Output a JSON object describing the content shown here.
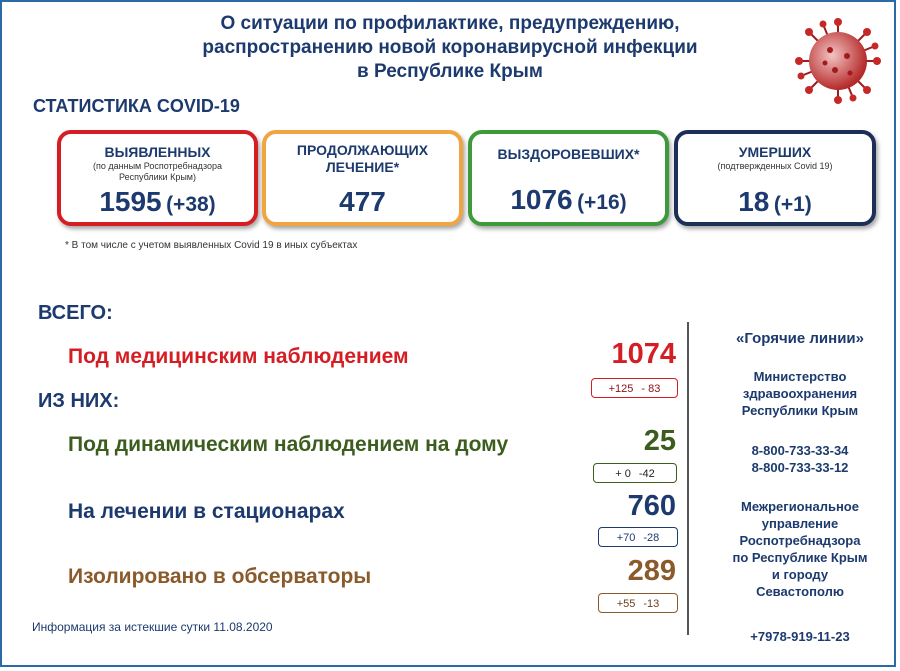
{
  "title": {
    "line1": "О ситуации по профилактике, предупреждению,",
    "line2": "распространению новой коронавирусной инфекции",
    "line3": "в Республике Крым"
  },
  "section_title": "СТАТИСТИКА COVID-19",
  "cards": {
    "detected": {
      "title": "ВЫЯВЛЕННЫХ",
      "sub": "(по данным Роспотребнадзора Республики Крым)",
      "value": "1595",
      "delta": "(+38)",
      "color": "#d51d24"
    },
    "treatment": {
      "title1": "ПРОДОЛЖАЮЩИХ",
      "title2": "ЛЕЧЕНИЕ*",
      "value": "477",
      "color": "#f0a543"
    },
    "recovered": {
      "title": "ВЫЗДОРОВЕВШИХ*",
      "value": "1076",
      "delta": "(+16)",
      "color": "#3c9a3a"
    },
    "deaths": {
      "title": "УМЕРШИХ",
      "sub": "(подтвержденных Covid 19)",
      "value": "18",
      "delta": "(+1)",
      "color": "#1c2f57"
    }
  },
  "footnote": "* В том числе с учетом выявленных Covid 19  в иных субъектах",
  "summary": {
    "total_label": "ВСЕГО:",
    "of_them_label": "ИЗ НИХ:",
    "rows": [
      {
        "label": "Под медицинским наблюдением",
        "value": "1074",
        "plus": "+125",
        "minus": "- 83"
      },
      {
        "label": "Под динамическим наблюдением на дому",
        "value": "25",
        "plus": "+ 0",
        "minus": "-42"
      },
      {
        "label": "На лечении в стационарах",
        "value": "760",
        "plus": "+70",
        "minus": "-28"
      },
      {
        "label": "Изолировано в обсерваторы",
        "value": "289",
        "plus": "+55",
        "minus": "-13"
      }
    ]
  },
  "hotlines": {
    "title": "«Горячие линии»",
    "ministry": [
      "Министерство",
      "здравоохранения",
      "Республики Крым"
    ],
    "phones1": [
      "8-800-733-33-34",
      "8-800-733-33-12"
    ],
    "rospotreb": [
      "Межрегиональное",
      "управление",
      "Роспотребнадзора",
      "по Республике Крым",
      "и городу",
      "Севастополю"
    ],
    "phone2": "+7978-919-11-23"
  },
  "info": "Информация за истекшие сутки 11.08.2020",
  "colors": {
    "accent": "#1c3a6e",
    "red": "#d51d24",
    "green": "#3d5d1f",
    "brown": "#8a5a2b"
  }
}
